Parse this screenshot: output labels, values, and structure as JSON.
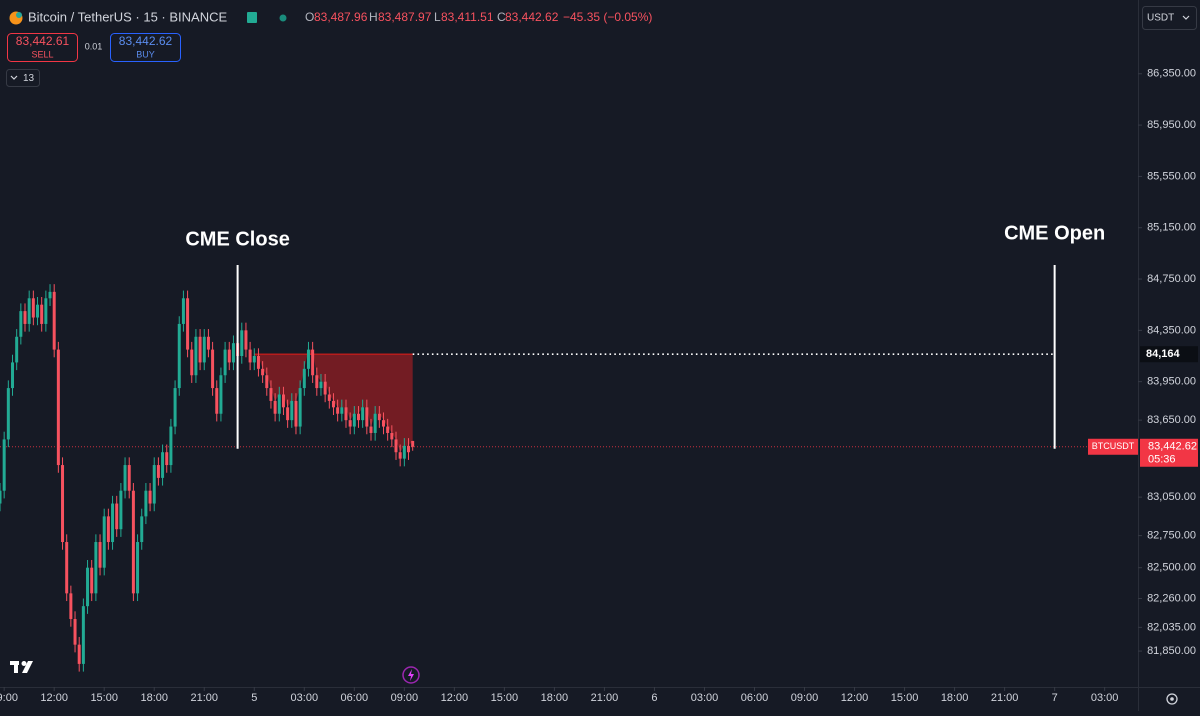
{
  "toolbar": {
    "symbol": "Bitcoin / TetherUS · 15 · BINANCE",
    "open_label": "O",
    "open": "83,487.96",
    "high_label": "H",
    "high": "83,487.97",
    "low_label": "L",
    "low": "83,411.51",
    "close_label": "C",
    "close": "83,442.62",
    "change": "−45.35 (−0.05%)",
    "sell": {
      "price": "83,442.61",
      "label": "SELL"
    },
    "spread": "0.01",
    "buy": {
      "price": "83,442.62",
      "label": "BUY"
    },
    "indicators": "13",
    "currency": "USDT"
  },
  "chart_data": {
    "type": "candlestick",
    "up_color": "#22ab94",
    "down_color": "#f7525f",
    "x": [
      8.75,
      9,
      9.25,
      9.5,
      9.75,
      10,
      10.25,
      10.5,
      10.75,
      11,
      11.25,
      11.5,
      11.75,
      12,
      12.25,
      12.5,
      12.75,
      13,
      13.25,
      13.5,
      13.75,
      14,
      14.25,
      14.5,
      14.75,
      15,
      15.25,
      15.5,
      15.75,
      16,
      16.25,
      16.5,
      16.75,
      17,
      17.25,
      17.5,
      17.75,
      18,
      18.25,
      18.5,
      18.75,
      19,
      19.25,
      19.5,
      19.75,
      20,
      20.25,
      20.5,
      20.75,
      21,
      21.25,
      21.5,
      21.75,
      22,
      22.25,
      22.5,
      22.75,
      23,
      23.25,
      23.5,
      23.75,
      24,
      24.25,
      24.5,
      24.75,
      25,
      25.25,
      25.5,
      25.75,
      26,
      26.25,
      26.5,
      26.75,
      27,
      27.25,
      27.5,
      27.75,
      28,
      28.25,
      28.5,
      28.75,
      29,
      29.25,
      29.5,
      29.75,
      30,
      30.25,
      30.5,
      30.75,
      31,
      31.25,
      31.5,
      31.75,
      32,
      32.25,
      32.5,
      32.75,
      33,
      33.25,
      33.5
    ],
    "open": [
      83000,
      83100,
      83500,
      83900,
      84100,
      84300,
      84500,
      84400,
      84600,
      84450,
      84550,
      84400,
      84600,
      84650,
      84200,
      83300,
      82700,
      82300,
      82100,
      81900,
      81750,
      82200,
      82500,
      82300,
      82700,
      82500,
      82900,
      82700,
      83000,
      82800,
      83100,
      83300,
      83100,
      82300,
      82700,
      82900,
      83100,
      83000,
      83300,
      83200,
      83400,
      83300,
      83600,
      83900,
      84400,
      84600,
      84200,
      84000,
      84300,
      84100,
      84300,
      84200,
      83900,
      83700,
      84000,
      84200,
      84100,
      84250,
      84150,
      84350,
      84200,
      84100,
      84150,
      84050,
      84000,
      83900,
      83800,
      83700,
      83850,
      83750,
      83650,
      83800,
      83600,
      83900,
      84050,
      84200,
      84000,
      83900,
      83950,
      83850,
      83800,
      83750,
      83700,
      83750,
      83650,
      83600,
      83700,
      83650,
      83750,
      83600,
      83550,
      83700,
      83650,
      83600,
      83550,
      83500,
      83400,
      83350,
      83450,
      83487.96
    ],
    "high": [
      83160,
      83560,
      83960,
      84160,
      84360,
      84560,
      84560,
      84660,
      84660,
      84610,
      84610,
      84660,
      84710,
      84710,
      84260,
      83360,
      82760,
      82360,
      82160,
      81960,
      82260,
      82560,
      82560,
      82760,
      82760,
      82960,
      82960,
      83060,
      83060,
      83160,
      83360,
      83360,
      83160,
      82760,
      82960,
      83160,
      83160,
      83360,
      83360,
      83460,
      83460,
      83660,
      83960,
      84460,
      84660,
      84660,
      84260,
      84360,
      84360,
      84360,
      84360,
      84260,
      83960,
      84060,
      84260,
      84260,
      84310,
      84310,
      84410,
      84410,
      84260,
      84210,
      84210,
      84110,
      84060,
      83960,
      83860,
      83910,
      83910,
      83810,
      83860,
      83860,
      83960,
      84110,
      84260,
      84260,
      84060,
      84010,
      84010,
      83910,
      83860,
      83810,
      83810,
      83810,
      83710,
      83760,
      83760,
      83810,
      83810,
      83660,
      83760,
      83760,
      83710,
      83660,
      83610,
      83560,
      83460,
      83510,
      83510,
      83487.97
    ],
    "low": [
      82940,
      83040,
      83440,
      83840,
      84040,
      84240,
      84340,
      84340,
      84390,
      84390,
      84340,
      84340,
      84540,
      84140,
      83240,
      82640,
      82240,
      82040,
      81840,
      81690,
      81690,
      82140,
      82240,
      82240,
      82440,
      82440,
      82640,
      82640,
      82740,
      82740,
      83040,
      83040,
      82240,
      82240,
      82640,
      82840,
      82940,
      82940,
      83140,
      83140,
      83240,
      83240,
      83540,
      83840,
      84340,
      84140,
      83940,
      83940,
      84040,
      84040,
      84140,
      83840,
      83640,
      83640,
      83940,
      84040,
      84040,
      84090,
      84090,
      84140,
      84040,
      84040,
      83990,
      83940,
      83840,
      83740,
      83640,
      83640,
      83690,
      83590,
      83590,
      83540,
      83540,
      83840,
      83990,
      83940,
      83840,
      83840,
      83790,
      83740,
      83690,
      83640,
      83640,
      83590,
      83540,
      83540,
      83590,
      83590,
      83540,
      83490,
      83490,
      83590,
      83540,
      83490,
      83440,
      83340,
      83290,
      83290,
      83340,
      83411.51
    ],
    "close": [
      83100,
      83500,
      83900,
      84100,
      84300,
      84500,
      84400,
      84600,
      84450,
      84550,
      84400,
      84600,
      84650,
      84200,
      83300,
      82700,
      82300,
      82100,
      81900,
      81750,
      82200,
      82500,
      82300,
      82700,
      82500,
      82900,
      82700,
      83000,
      82800,
      83100,
      83300,
      83100,
      82300,
      82700,
      82900,
      83100,
      83000,
      83300,
      83200,
      83400,
      83300,
      83600,
      83900,
      84400,
      84600,
      84200,
      84000,
      84300,
      84100,
      84300,
      84200,
      83900,
      83700,
      84000,
      84200,
      84100,
      84250,
      84150,
      84350,
      84200,
      84100,
      84150,
      84050,
      84000,
      83900,
      83800,
      83700,
      83850,
      83750,
      83650,
      83800,
      83600,
      83900,
      84050,
      84200,
      84000,
      83900,
      83950,
      83850,
      83800,
      83750,
      83700,
      83750,
      83650,
      83600,
      83700,
      83650,
      83750,
      83600,
      83550,
      83700,
      83650,
      83600,
      83550,
      83500,
      83400,
      83350,
      83450,
      83400,
      83442.62
    ],
    "xlim": [
      8.75,
      77
    ],
    "ylim": [
      81570,
      86925
    ],
    "xticks": [
      {
        "value": 9,
        "label": "09:00"
      },
      {
        "value": 12,
        "label": "12:00"
      },
      {
        "value": 15,
        "label": "15:00"
      },
      {
        "value": 18,
        "label": "18:00"
      },
      {
        "value": 21,
        "label": "21:00"
      },
      {
        "value": 24,
        "label": "5"
      },
      {
        "value": 27,
        "label": "03:00"
      },
      {
        "value": 30,
        "label": "06:00"
      },
      {
        "value": 33,
        "label": "09:00"
      },
      {
        "value": 36,
        "label": "12:00"
      },
      {
        "value": 39,
        "label": "15:00"
      },
      {
        "value": 42,
        "label": "18:00"
      },
      {
        "value": 45,
        "label": "21:00"
      },
      {
        "value": 48,
        "label": "6"
      },
      {
        "value": 51,
        "label": "03:00"
      },
      {
        "value": 54,
        "label": "06:00"
      },
      {
        "value": 57,
        "label": "09:00"
      },
      {
        "value": 60,
        "label": "12:00"
      },
      {
        "value": 63,
        "label": "15:00"
      },
      {
        "value": 66,
        "label": "18:00"
      },
      {
        "value": 69,
        "label": "21:00"
      },
      {
        "value": 72,
        "label": "7"
      },
      {
        "value": 75,
        "label": "03:00"
      }
    ],
    "yticks": [
      {
        "value": 86350,
        "label": "86,350.00"
      },
      {
        "value": 85950,
        "label": "85,950.00"
      },
      {
        "value": 85550,
        "label": "85,550.00"
      },
      {
        "value": 85150,
        "label": "85,150.00"
      },
      {
        "value": 84750,
        "label": "84,750.00"
      },
      {
        "value": 84350,
        "label": "84,350.00"
      },
      {
        "value": 83950,
        "label": "83,950.00"
      },
      {
        "value": 83650,
        "label": "83,650.00"
      },
      {
        "value": 83050,
        "label": "83,050.00"
      },
      {
        "value": 82750,
        "label": "82,750.00"
      },
      {
        "value": 82500,
        "label": "82,500.00"
      },
      {
        "value": 82260,
        "label": "82,260.00"
      },
      {
        "value": 82035,
        "label": "82,035.00"
      },
      {
        "value": 81850,
        "label": "81,850.00"
      }
    ],
    "annotations": [
      {
        "text": "CME Close",
        "x": 23
      },
      {
        "text": "CME Open",
        "x": 72
      }
    ],
    "gap": {
      "value": 84164,
      "label": "84,164",
      "from": 24,
      "to": 72,
      "color": "#7d1d24"
    },
    "last_price": {
      "value": 83442.62,
      "label": "83,442.62",
      "countdown": "05:36",
      "symbol": "BTCUSDT",
      "color": "#f23645"
    }
  }
}
